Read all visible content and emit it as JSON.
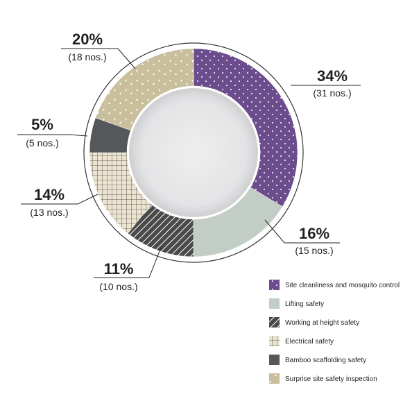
{
  "chart_data": {
    "type": "pie",
    "variant": "donut",
    "categories": [
      "Site cleanliness and mosquito control",
      "Lifting safety",
      "Working at height safety",
      "Electrical safety",
      "Bamboo scaffolding safety",
      "Surprise site safety inspection"
    ],
    "values": [
      31,
      15,
      10,
      13,
      5,
      18
    ],
    "percent_labels": [
      "34%",
      "16%",
      "11%",
      "14%",
      "5%",
      "20%"
    ],
    "count_labels": [
      "(31 nos.)",
      "(15 nos.)",
      "(10 nos.)",
      "(13 nos.)",
      "(5 nos.)",
      "(18 nos.)"
    ],
    "colors": [
      "#6b4c8c",
      "#c2cdc6",
      "#4a4a4a",
      "#ece4d0",
      "#55575b",
      "#c9bf9c"
    ],
    "patterns": [
      "dots",
      "solid",
      "diagonal-lines",
      "grid",
      "solid",
      "triangles"
    ],
    "legend_position": "bottom-right",
    "title": ""
  }
}
